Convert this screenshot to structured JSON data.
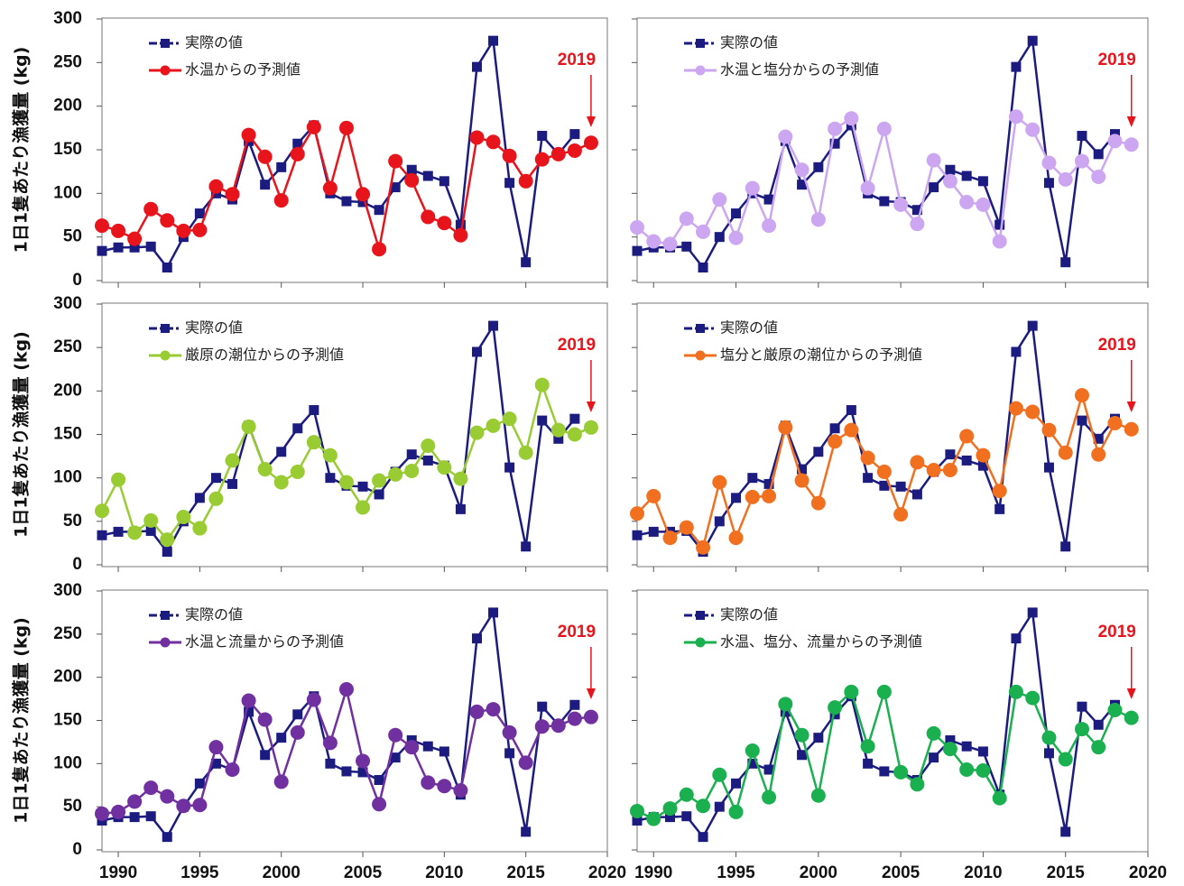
{
  "chart_data": [
    {
      "type": "line",
      "ylabel": "1日1隻あたり漁獲量 (kg)",
      "ylim": [
        0,
        300
      ],
      "yticks": [
        0,
        50,
        100,
        150,
        200,
        250,
        300
      ],
      "ytick_labels": true,
      "xlim": [
        1989,
        2020
      ],
      "xticks": [
        1990,
        1995,
        2000,
        2005,
        2010,
        2015,
        2020
      ],
      "xtick_labels": false,
      "annotation_x": 2019,
      "x": [
        1989,
        1990,
        1991,
        1992,
        1993,
        1994,
        1995,
        1996,
        1997,
        1998,
        1999,
        2000,
        2001,
        2002,
        2003,
        2004,
        2005,
        2006,
        2007,
        2008,
        2009,
        2010,
        2011,
        2012,
        2013,
        2014,
        2015,
        2016,
        2017,
        2018,
        2019
      ],
      "series": [
        {
          "name": "実際の値",
          "color": "#1c1c80",
          "marker": "square",
          "values": [
            34,
            38,
            38,
            39,
            15,
            50,
            77,
            100,
            93,
            160,
            110,
            130,
            157,
            178,
            100,
            91,
            90,
            81,
            107,
            127,
            120,
            114,
            64,
            245,
            275,
            112,
            21,
            166,
            145,
            168,
            null
          ]
        },
        {
          "name": "水温からの予測値",
          "color": "#e8141b",
          "marker": "circle",
          "values": [
            63,
            57,
            48,
            82,
            69,
            57,
            58,
            108,
            99,
            167,
            142,
            92,
            145,
            176,
            106,
            175,
            99,
            36,
            137,
            115,
            73,
            66,
            52,
            164,
            159,
            143,
            114,
            139,
            145,
            149,
            158
          ]
        }
      ]
    },
    {
      "type": "line",
      "ylim": [
        0,
        300
      ],
      "yticks": [
        0,
        50,
        100,
        150,
        200,
        250,
        300
      ],
      "ytick_labels": false,
      "xlim": [
        1989,
        2020
      ],
      "xticks": [
        1990,
        1995,
        2000,
        2005,
        2010,
        2015,
        2020
      ],
      "xtick_labels": false,
      "annotation_x": 2019,
      "x": [
        1989,
        1990,
        1991,
        1992,
        1993,
        1994,
        1995,
        1996,
        1997,
        1998,
        1999,
        2000,
        2001,
        2002,
        2003,
        2004,
        2005,
        2006,
        2007,
        2008,
        2009,
        2010,
        2011,
        2012,
        2013,
        2014,
        2015,
        2016,
        2017,
        2018,
        2019
      ],
      "series": [
        {
          "name": "実際の値",
          "color": "#1c1c80",
          "marker": "square",
          "values": [
            34,
            38,
            38,
            39,
            15,
            50,
            77,
            100,
            93,
            160,
            110,
            130,
            157,
            178,
            100,
            91,
            90,
            81,
            107,
            127,
            120,
            114,
            64,
            245,
            275,
            112,
            21,
            166,
            145,
            168,
            null
          ]
        },
        {
          "name": "水温と塩分からの予測値",
          "color": "#cda6f2",
          "marker": "circle",
          "values": [
            61,
            45,
            42,
            71,
            56,
            93,
            49,
            106,
            63,
            165,
            127,
            70,
            174,
            186,
            106,
            174,
            87,
            65,
            138,
            114,
            90,
            87,
            45,
            188,
            173,
            135,
            116,
            137,
            119,
            160,
            156
          ]
        }
      ]
    },
    {
      "type": "line",
      "ylabel": "1日1隻あたり漁獲量 (kg)",
      "ylim": [
        0,
        300
      ],
      "yticks": [
        0,
        50,
        100,
        150,
        200,
        250,
        300
      ],
      "ytick_labels": true,
      "xlim": [
        1989,
        2020
      ],
      "xticks": [
        1990,
        1995,
        2000,
        2005,
        2010,
        2015,
        2020
      ],
      "xtick_labels": false,
      "annotation_x": 2019,
      "x": [
        1989,
        1990,
        1991,
        1992,
        1993,
        1994,
        1995,
        1996,
        1997,
        1998,
        1999,
        2000,
        2001,
        2002,
        2003,
        2004,
        2005,
        2006,
        2007,
        2008,
        2009,
        2010,
        2011,
        2012,
        2013,
        2014,
        2015,
        2016,
        2017,
        2018,
        2019
      ],
      "series": [
        {
          "name": "実際の値",
          "color": "#1c1c80",
          "marker": "square",
          "values": [
            34,
            38,
            38,
            39,
            15,
            50,
            77,
            100,
            93,
            160,
            110,
            130,
            157,
            178,
            100,
            91,
            90,
            81,
            107,
            127,
            120,
            114,
            64,
            245,
            275,
            112,
            21,
            166,
            145,
            168,
            null
          ]
        },
        {
          "name": "厳原の潮位からの予測値",
          "color": "#99cc33",
          "marker": "circle",
          "values": [
            62,
            98,
            37,
            51,
            29,
            55,
            42,
            76,
            120,
            159,
            110,
            95,
            107,
            141,
            126,
            95,
            66,
            97,
            104,
            108,
            137,
            112,
            99,
            152,
            160,
            168,
            129,
            207,
            155,
            150,
            158
          ]
        }
      ]
    },
    {
      "type": "line",
      "ylim": [
        0,
        300
      ],
      "yticks": [
        0,
        50,
        100,
        150,
        200,
        250,
        300
      ],
      "ytick_labels": false,
      "xlim": [
        1989,
        2020
      ],
      "xticks": [
        1990,
        1995,
        2000,
        2005,
        2010,
        2015,
        2020
      ],
      "xtick_labels": false,
      "annotation_x": 2019,
      "x": [
        1989,
        1990,
        1991,
        1992,
        1993,
        1994,
        1995,
        1996,
        1997,
        1998,
        1999,
        2000,
        2001,
        2002,
        2003,
        2004,
        2005,
        2006,
        2007,
        2008,
        2009,
        2010,
        2011,
        2012,
        2013,
        2014,
        2015,
        2016,
        2017,
        2018,
        2019
      ],
      "series": [
        {
          "name": "実際の値",
          "color": "#1c1c80",
          "marker": "square",
          "values": [
            34,
            38,
            38,
            39,
            15,
            50,
            77,
            100,
            93,
            160,
            110,
            130,
            157,
            178,
            100,
            91,
            90,
            81,
            107,
            127,
            120,
            114,
            64,
            245,
            275,
            112,
            21,
            166,
            145,
            168,
            null
          ]
        },
        {
          "name": "塩分と厳原の潮位からの予測値",
          "color": "#f07020",
          "marker": "circle",
          "values": [
            59,
            79,
            31,
            43,
            20,
            95,
            31,
            78,
            79,
            158,
            97,
            71,
            142,
            155,
            123,
            107,
            58,
            118,
            109,
            109,
            148,
            126,
            85,
            180,
            176,
            155,
            129,
            195,
            127,
            163,
            156
          ]
        }
      ]
    },
    {
      "type": "line",
      "ylabel": "1日1隻あたり漁獲量 (kg)",
      "ylim": [
        0,
        300
      ],
      "yticks": [
        0,
        50,
        100,
        150,
        200,
        250,
        300
      ],
      "ytick_labels": true,
      "xlim": [
        1989,
        2020
      ],
      "xticks": [
        1990,
        1995,
        2000,
        2005,
        2010,
        2015,
        2020
      ],
      "xtick_labels": true,
      "annotation_x": 2019,
      "x": [
        1989,
        1990,
        1991,
        1992,
        1993,
        1994,
        1995,
        1996,
        1997,
        1998,
        1999,
        2000,
        2001,
        2002,
        2003,
        2004,
        2005,
        2006,
        2007,
        2008,
        2009,
        2010,
        2011,
        2012,
        2013,
        2014,
        2015,
        2016,
        2017,
        2018,
        2019
      ],
      "series": [
        {
          "name": "実際の値",
          "color": "#1c1c80",
          "marker": "square",
          "values": [
            34,
            38,
            38,
            39,
            15,
            50,
            77,
            100,
            93,
            160,
            110,
            130,
            157,
            178,
            100,
            91,
            90,
            81,
            107,
            127,
            120,
            114,
            64,
            245,
            275,
            112,
            21,
            166,
            145,
            168,
            null
          ]
        },
        {
          "name": "水温と流量からの予測値",
          "color": "#7030a0",
          "marker": "circle",
          "values": [
            42,
            44,
            56,
            72,
            62,
            51,
            52,
            119,
            93,
            173,
            151,
            79,
            136,
            174,
            124,
            186,
            103,
            53,
            133,
            119,
            78,
            74,
            69,
            160,
            163,
            136,
            101,
            143,
            144,
            152,
            154
          ]
        }
      ]
    },
    {
      "type": "line",
      "ylim": [
        0,
        300
      ],
      "yticks": [
        0,
        50,
        100,
        150,
        200,
        250,
        300
      ],
      "ytick_labels": false,
      "xlim": [
        1989,
        2020
      ],
      "xticks": [
        1990,
        1995,
        2000,
        2005,
        2010,
        2015,
        2020
      ],
      "xtick_labels": true,
      "annotation_x": 2019,
      "x": [
        1989,
        1990,
        1991,
        1992,
        1993,
        1994,
        1995,
        1996,
        1997,
        1998,
        1999,
        2000,
        2001,
        2002,
        2003,
        2004,
        2005,
        2006,
        2007,
        2008,
        2009,
        2010,
        2011,
        2012,
        2013,
        2014,
        2015,
        2016,
        2017,
        2018,
        2019
      ],
      "series": [
        {
          "name": "実際の値",
          "color": "#1c1c80",
          "marker": "square",
          "values": [
            34,
            38,
            38,
            39,
            15,
            50,
            77,
            100,
            93,
            160,
            110,
            130,
            157,
            178,
            100,
            91,
            90,
            81,
            107,
            127,
            120,
            114,
            64,
            245,
            275,
            112,
            21,
            166,
            145,
            168,
            null
          ]
        },
        {
          "name": "水温、塩分、流量からの予測値",
          "color": "#1ab050",
          "marker": "circle",
          "values": [
            45,
            36,
            48,
            64,
            51,
            87,
            44,
            115,
            61,
            169,
            133,
            63,
            165,
            183,
            120,
            183,
            90,
            76,
            135,
            117,
            93,
            92,
            60,
            183,
            176,
            130,
            105,
            140,
            119,
            162,
            153
          ]
        }
      ]
    }
  ]
}
